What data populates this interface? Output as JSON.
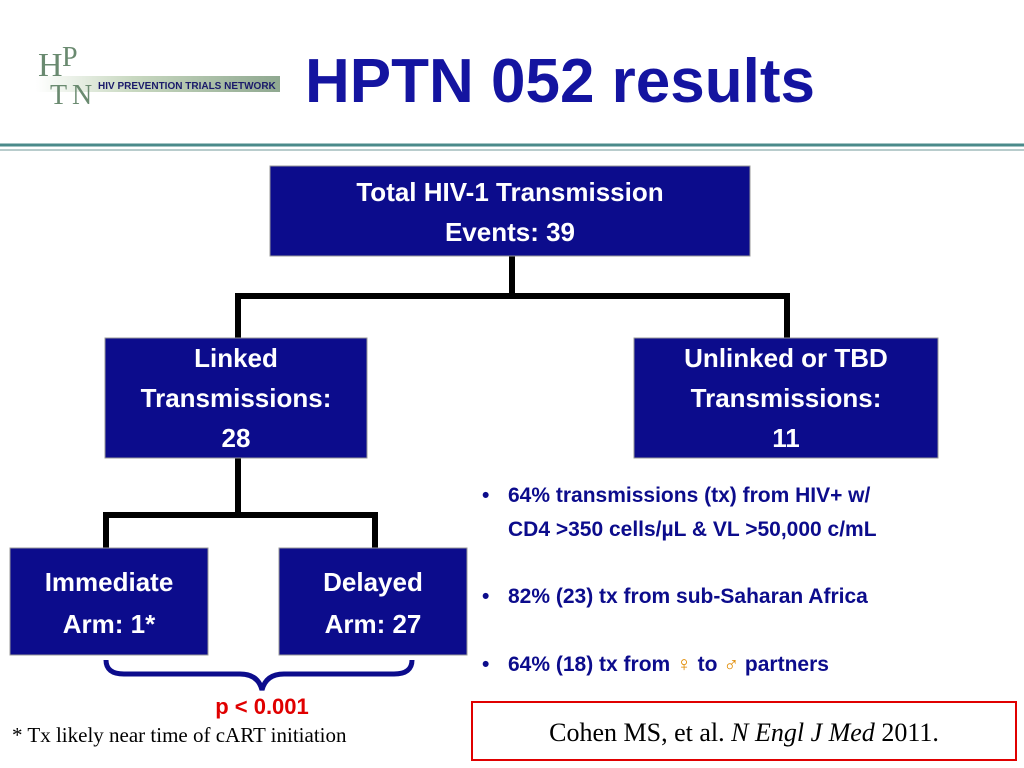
{
  "header": {
    "title": "HPTN 052 results",
    "logo": {
      "letters": [
        "H",
        "P",
        "T",
        "N"
      ],
      "text": "HIV PREVENTION TRIALS NETWORK"
    }
  },
  "nodes": [
    {
      "lines": [
        "Total HIV-1 Transmission",
        "Events: 39"
      ]
    },
    {
      "lines": [
        "Linked",
        "Transmissions:",
        "28"
      ]
    },
    {
      "lines": [
        "Unlinked or TBD",
        "Transmissions:",
        "11"
      ]
    },
    {
      "lines": [
        "Immediate",
        "Arm: 1*"
      ]
    },
    {
      "lines": [
        "Delayed",
        "Arm: 27"
      ]
    }
  ],
  "bullets": [
    {
      "lines": [
        "64% transmissions (tx) from HIV+ w/",
        "CD4 >350 cells/µL & VL >50,000 c/mL"
      ]
    },
    {
      "lines": [
        "82% (23) tx from sub-Saharan Africa"
      ]
    },
    {
      "parts": [
        "64% (18) tx from ",
        "♀",
        " to ",
        "♂",
        " partners"
      ]
    }
  ],
  "significance": "p < 0.001",
  "footnote": "* Tx likely near time of cART initiation",
  "citation": {
    "authors": "Cohen MS, et al. ",
    "journal": "N Engl J Med",
    "year": " 2011."
  }
}
